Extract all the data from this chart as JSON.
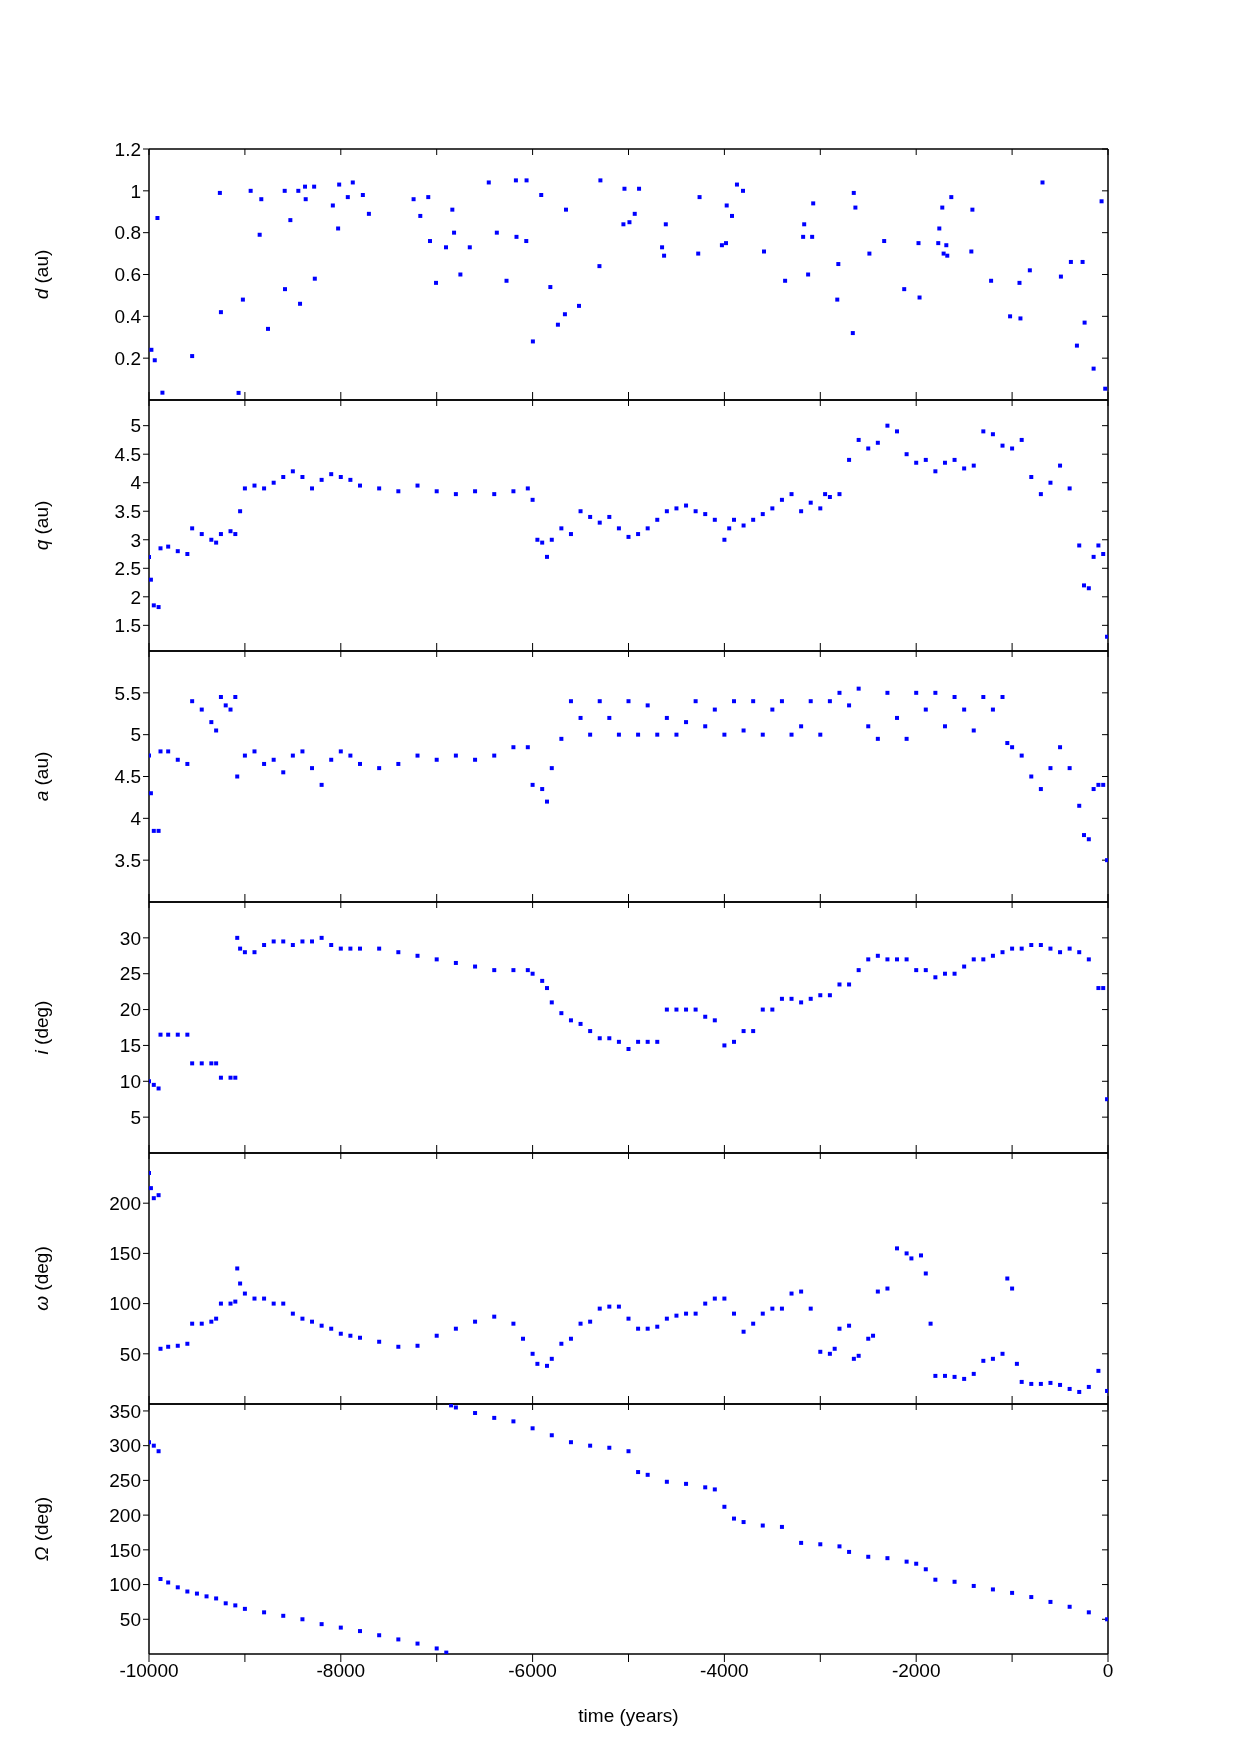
{
  "chart_data": [
    {
      "type": "scatter",
      "ylabel": "d (au)",
      "color": "#0000ff",
      "marker": "square",
      "xlim": [
        -10000,
        0
      ],
      "ylim": [
        0,
        1.2
      ],
      "yticks": [
        0.2,
        0.4,
        0.6,
        0.8,
        1,
        1.2
      ],
      "tick_labels": "y",
      "xticks": [
        -10000,
        {
          "value": -9000,
          "label": null
        },
        -8000,
        {
          "value": -7000,
          "label": null
        },
        -6000,
        {
          "value": -5000,
          "label": null
        },
        -4000,
        {
          "value": -3000,
          "label": null
        },
        -2000,
        {
          "value": -1000,
          "label": null
        },
        0
      ],
      "x": [
        -9975,
        -9940,
        -9912,
        -9860,
        -9550,
        -9261,
        -9250,
        -9066,
        -9021,
        -8940,
        -8846,
        -8829,
        -8759,
        -8585,
        -8582,
        -8526,
        -8443,
        -8425,
        -8373,
        -8366,
        -8278,
        -8271,
        -8083,
        -8028,
        -8017,
        -7927,
        -7875,
        -7770,
        -7707,
        -7241,
        -7171,
        -7088,
        -7070,
        -7007,
        -6903,
        -6837,
        -6819,
        -6753,
        -6655,
        -6457,
        -6373,
        -6272,
        -6174,
        -6168,
        -6066,
        -6063,
        -5997,
        -5910,
        -5815,
        -5736,
        -5663,
        -5652,
        -5516,
        -5303,
        -5293,
        -5053,
        -5042,
        -4990,
        -4935,
        -4890,
        -4650,
        -4629,
        -4611,
        -4273,
        -4259,
        -4026,
        -3983,
        -3976,
        -3921,
        -3869,
        -3806,
        -3587,
        -3367,
        -3179,
        -3168,
        -3127,
        -3085,
        -3074,
        -2823,
        -2812,
        -2661,
        -2651,
        -2634,
        -2488,
        -2334,
        -2125,
        -1976,
        -1965,
        -1770,
        -1759,
        -1728,
        -1714,
        -1686,
        -1676,
        -1634,
        -1425,
        -1414,
        -1219,
        -1021,
        -923,
        -913,
        -815,
        -683,
        -491,
        -387,
        -324,
        -265,
        -244,
        -150,
        -67,
        -29
      ],
      "values": [
        0.24,
        0.19,
        0.87,
        0.035,
        0.21,
        0.99,
        0.42,
        0.034,
        0.48,
        1.0,
        0.79,
        0.96,
        0.34,
        1.0,
        0.53,
        0.86,
        1.0,
        0.46,
        1.02,
        0.96,
        1.02,
        0.58,
        0.93,
        0.82,
        1.03,
        0.97,
        1.04,
        0.98,
        0.89,
        0.96,
        0.88,
        0.97,
        0.76,
        0.56,
        0.73,
        0.91,
        0.8,
        0.6,
        0.73,
        1.04,
        0.8,
        0.57,
        1.05,
        0.78,
        0.76,
        1.05,
        0.28,
        0.98,
        0.54,
        0.36,
        0.41,
        0.91,
        0.45,
        0.64,
        1.05,
        0.84,
        1.01,
        0.85,
        0.89,
        1.01,
        0.73,
        0.69,
        0.84,
        0.7,
        0.97,
        0.74,
        0.75,
        0.93,
        0.88,
        1.03,
        1.0,
        0.71,
        0.57,
        0.78,
        0.84,
        0.6,
        0.78,
        0.94,
        0.48,
        0.65,
        0.32,
        0.99,
        0.92,
        0.7,
        0.76,
        0.53,
        0.75,
        0.49,
        0.75,
        0.82,
        0.92,
        0.7,
        0.74,
        0.69,
        0.97,
        0.71,
        0.91,
        0.57,
        0.4,
        0.56,
        0.39,
        0.62,
        1.04,
        0.59,
        0.66,
        0.26,
        0.66,
        0.37,
        0.15,
        0.95,
        0.054
      ]
    },
    {
      "type": "scatter",
      "ylabel": "q (au)",
      "color": "#0000ff",
      "marker": "square",
      "xlim": [
        -10000,
        0
      ],
      "ylim": [
        1.05,
        5.45
      ],
      "yticks": [
        1.5,
        2,
        2.5,
        3,
        3.5,
        4,
        4.5,
        5
      ],
      "tick_labels": "y",
      "xticks": [
        -10000,
        {
          "value": -9000,
          "label": null
        },
        -8000,
        {
          "value": -7000,
          "label": null
        },
        -6000,
        {
          "value": -5000,
          "label": null
        },
        -4000,
        {
          "value": -3000,
          "label": null
        },
        -2000,
        {
          "value": -1000,
          "label": null
        },
        0
      ],
      "x": [
        -10000,
        -9980,
        -9950,
        -9900,
        -9880,
        -9800,
        -9700,
        -9600,
        -9550,
        -9450,
        -9350,
        -9300,
        -9250,
        -9150,
        -9100,
        -9050,
        -9000,
        -8900,
        -8800,
        -8700,
        -8600,
        -8500,
        -8400,
        -8300,
        -8200,
        -8100,
        -8000,
        -7900,
        -7800,
        -7600,
        -7400,
        -7200,
        -7000,
        -6800,
        -6600,
        -6400,
        -6200,
        -6050,
        -6000,
        -5950,
        -5900,
        -5850,
        -5800,
        -5700,
        -5600,
        -5500,
        -5400,
        -5300,
        -5200,
        -5100,
        -5000,
        -4900,
        -4800,
        -4700,
        -4600,
        -4500,
        -4400,
        -4300,
        -4200,
        -4100,
        -4000,
        -3950,
        -3900,
        -3800,
        -3700,
        -3600,
        -3500,
        -3400,
        -3300,
        -3200,
        -3100,
        -3000,
        -2950,
        -2900,
        -2800,
        -2700,
        -2600,
        -2500,
        -2400,
        -2300,
        -2200,
        -2100,
        -2000,
        -1900,
        -1800,
        -1700,
        -1600,
        -1500,
        -1400,
        -1300,
        -1200,
        -1100,
        -1000,
        -900,
        -800,
        -700,
        -600,
        -500,
        -400,
        -300,
        -250,
        -200,
        -150,
        -100,
        -50,
        -10
      ],
      "values": [
        2.7,
        2.3,
        1.85,
        1.82,
        2.85,
        2.88,
        2.8,
        2.75,
        3.2,
        3.1,
        3.0,
        2.95,
        3.1,
        3.15,
        3.1,
        3.5,
        3.9,
        3.95,
        3.9,
        4.0,
        4.1,
        4.2,
        4.1,
        3.9,
        4.05,
        4.15,
        4.1,
        4.05,
        3.95,
        3.9,
        3.85,
        3.95,
        3.85,
        3.8,
        3.85,
        3.8,
        3.85,
        3.9,
        3.7,
        3.0,
        2.95,
        2.7,
        3.0,
        3.2,
        3.1,
        3.5,
        3.4,
        3.3,
        3.4,
        3.2,
        3.05,
        3.1,
        3.2,
        3.35,
        3.5,
        3.55,
        3.6,
        3.5,
        3.45,
        3.35,
        3.0,
        3.2,
        3.35,
        3.25,
        3.35,
        3.45,
        3.55,
        3.7,
        3.8,
        3.5,
        3.65,
        3.55,
        3.8,
        3.75,
        3.8,
        4.4,
        4.75,
        4.6,
        4.7,
        5.0,
        4.9,
        4.5,
        4.35,
        4.4,
        4.2,
        4.35,
        4.4,
        4.25,
        4.3,
        4.9,
        4.85,
        4.65,
        4.6,
        4.75,
        4.1,
        3.8,
        4.0,
        4.3,
        3.9,
        2.9,
        2.2,
        2.15,
        2.7,
        2.9,
        2.75,
        1.3
      ]
    },
    {
      "type": "scatter",
      "ylabel": "a (au)",
      "color": "#0000ff",
      "marker": "square",
      "xlim": [
        -10000,
        0
      ],
      "ylim": [
        3,
        6
      ],
      "yticks": [
        3.5,
        4,
        4.5,
        5,
        5.5
      ],
      "tick_labels": "y",
      "xticks": [
        -10000,
        {
          "value": -9000,
          "label": null
        },
        -8000,
        {
          "value": -7000,
          "label": null
        },
        -6000,
        {
          "value": -5000,
          "label": null
        },
        -4000,
        {
          "value": -3000,
          "label": null
        },
        -2000,
        {
          "value": -1000,
          "label": null
        },
        0
      ],
      "x": [
        -10000,
        -9980,
        -9950,
        -9900,
        -9880,
        -9800,
        -9700,
        -9600,
        -9550,
        -9450,
        -9350,
        -9300,
        -9250,
        -9200,
        -9150,
        -9100,
        -9080,
        -9000,
        -8900,
        -8800,
        -8700,
        -8600,
        -8500,
        -8400,
        -8300,
        -8200,
        -8100,
        -8000,
        -7900,
        -7800,
        -7600,
        -7400,
        -7200,
        -7000,
        -6800,
        -6600,
        -6400,
        -6200,
        -6050,
        -6000,
        -5900,
        -5850,
        -5800,
        -5700,
        -5600,
        -5500,
        -5400,
        -5300,
        -5200,
        -5100,
        -5000,
        -4900,
        -4800,
        -4700,
        -4600,
        -4500,
        -4400,
        -4300,
        -4200,
        -4100,
        -4000,
        -3900,
        -3800,
        -3700,
        -3600,
        -3500,
        -3400,
        -3300,
        -3200,
        -3100,
        -3000,
        -2900,
        -2800,
        -2700,
        -2600,
        -2500,
        -2400,
        -2300,
        -2200,
        -2100,
        -2000,
        -1900,
        -1800,
        -1700,
        -1600,
        -1500,
        -1400,
        -1300,
        -1200,
        -1100,
        -1050,
        -1000,
        -900,
        -800,
        -700,
        -600,
        -500,
        -400,
        -300,
        -250,
        -200,
        -150,
        -100,
        -50,
        -10
      ],
      "values": [
        4.75,
        4.3,
        3.85,
        3.85,
        4.8,
        4.8,
        4.7,
        4.65,
        5.4,
        5.3,
        5.15,
        5.05,
        5.45,
        5.35,
        5.3,
        5.45,
        4.5,
        4.75,
        4.8,
        4.65,
        4.7,
        4.55,
        4.75,
        4.8,
        4.6,
        4.4,
        4.7,
        4.8,
        4.75,
        4.65,
        4.6,
        4.65,
        4.75,
        4.7,
        4.75,
        4.7,
        4.75,
        4.85,
        4.85,
        4.4,
        4.35,
        4.2,
        4.6,
        4.95,
        5.4,
        5.2,
        5.0,
        5.4,
        5.2,
        5.0,
        5.4,
        5.0,
        5.35,
        5.0,
        5.2,
        5.0,
        5.15,
        5.4,
        5.1,
        5.3,
        5.0,
        5.4,
        5.05,
        5.4,
        5.0,
        5.3,
        5.4,
        5.0,
        5.1,
        5.4,
        5.0,
        5.4,
        5.5,
        5.35,
        5.55,
        5.1,
        4.95,
        5.5,
        5.2,
        4.95,
        5.5,
        5.3,
        5.5,
        5.1,
        5.45,
        5.3,
        5.05,
        5.45,
        5.3,
        5.45,
        4.9,
        4.85,
        4.75,
        4.5,
        4.35,
        4.6,
        4.85,
        4.6,
        4.15,
        3.8,
        3.75,
        4.35,
        4.4,
        4.4,
        3.5
      ]
    },
    {
      "type": "scatter",
      "ylabel": "i (deg)",
      "color": "#0000ff",
      "marker": "square",
      "xlim": [
        -10000,
        0
      ],
      "ylim": [
        0,
        35
      ],
      "yticks": [
        5,
        10,
        15,
        20,
        25,
        30
      ],
      "tick_labels": "y",
      "xticks": [
        -10000,
        {
          "value": -9000,
          "label": null
        },
        -8000,
        {
          "value": -7000,
          "label": null
        },
        -6000,
        {
          "value": -5000,
          "label": null
        },
        -4000,
        {
          "value": -3000,
          "label": null
        },
        -2000,
        {
          "value": -1000,
          "label": null
        },
        0
      ],
      "x": [
        -10000,
        -9950,
        -9900,
        -9880,
        -9800,
        -9700,
        -9600,
        -9550,
        -9450,
        -9350,
        -9300,
        -9250,
        -9150,
        -9100,
        -9080,
        -9050,
        -9000,
        -8900,
        -8800,
        -8700,
        -8600,
        -8500,
        -8400,
        -8300,
        -8200,
        -8100,
        -8000,
        -7900,
        -7800,
        -7600,
        -7400,
        -7200,
        -7000,
        -6800,
        -6600,
        -6400,
        -6200,
        -6050,
        -6000,
        -5900,
        -5850,
        -5800,
        -5700,
        -5600,
        -5500,
        -5400,
        -5300,
        -5200,
        -5100,
        -5000,
        -4900,
        -4800,
        -4700,
        -4600,
        -4500,
        -4400,
        -4300,
        -4200,
        -4100,
        -4000,
        -3900,
        -3800,
        -3700,
        -3600,
        -3500,
        -3400,
        -3300,
        -3200,
        -3100,
        -3000,
        -2900,
        -2800,
        -2700,
        -2600,
        -2500,
        -2400,
        -2300,
        -2200,
        -2100,
        -2000,
        -1900,
        -1800,
        -1700,
        -1600,
        -1500,
        -1400,
        -1300,
        -1200,
        -1100,
        -1000,
        -900,
        -800,
        -700,
        -600,
        -500,
        -400,
        -300,
        -200,
        -100,
        -50,
        -10
      ],
      "values": [
        10,
        9.5,
        9,
        16.5,
        16.5,
        16.5,
        16.5,
        12.5,
        12.5,
        12.5,
        12.5,
        10.5,
        10.5,
        10.5,
        30,
        28.5,
        28,
        28,
        29,
        29.5,
        29.5,
        29,
        29.5,
        29.5,
        30,
        29,
        28.5,
        28.5,
        28.5,
        28.5,
        28,
        27.5,
        27,
        26.5,
        26,
        25.5,
        25.5,
        25.5,
        25,
        24,
        23,
        21,
        19.5,
        18.5,
        18,
        17,
        16,
        16,
        15.5,
        14.5,
        15.5,
        15.5,
        15.5,
        20,
        20,
        20,
        20,
        19,
        18.5,
        15,
        15.5,
        17,
        17,
        20,
        20,
        21.5,
        21.5,
        21,
        21.5,
        22,
        22,
        23.5,
        23.5,
        25.5,
        27,
        27.5,
        27,
        27,
        27,
        25.5,
        25.5,
        24.5,
        25,
        25,
        26,
        27,
        27,
        27.5,
        28,
        28.5,
        28.5,
        29,
        29,
        28.5,
        28,
        28.5,
        28,
        27,
        23,
        23,
        7.5
      ]
    },
    {
      "type": "scatter",
      "ylabel": "ω (deg)",
      "color": "#0000ff",
      "marker": "square",
      "xlim": [
        -10000,
        0
      ],
      "ylim": [
        0,
        250
      ],
      "yticks": [
        50,
        100,
        150,
        200
      ],
      "tick_labels": "y",
      "xticks": [
        -10000,
        {
          "value": -9000,
          "label": null
        },
        -8000,
        {
          "value": -7000,
          "label": null
        },
        -6000,
        {
          "value": -5000,
          "label": null
        },
        -4000,
        {
          "value": -3000,
          "label": null
        },
        -2000,
        {
          "value": -1000,
          "label": null
        },
        0
      ],
      "x": [
        -10000,
        -9980,
        -9950,
        -9900,
        -9880,
        -9800,
        -9700,
        -9600,
        -9550,
        -9450,
        -9350,
        -9300,
        -9250,
        -9150,
        -9100,
        -9080,
        -9050,
        -9000,
        -8900,
        -8800,
        -8700,
        -8600,
        -8500,
        -8400,
        -8300,
        -8200,
        -8100,
        -8000,
        -7900,
        -7800,
        -7600,
        -7400,
        -7200,
        -7000,
        -6800,
        -6600,
        -6400,
        -6200,
        -6100,
        -6000,
        -5950,
        -5850,
        -5800,
        -5700,
        -5600,
        -5500,
        -5400,
        -5300,
        -5200,
        -5100,
        -5000,
        -4900,
        -4800,
        -4700,
        -4600,
        -4500,
        -4400,
        -4300,
        -4200,
        -4100,
        -4000,
        -3900,
        -3800,
        -3700,
        -3600,
        -3500,
        -3400,
        -3300,
        -3200,
        -3100,
        -3000,
        -2900,
        -2850,
        -2800,
        -2700,
        -2650,
        -2600,
        -2500,
        -2450,
        -2400,
        -2300,
        -2200,
        -2100,
        -2050,
        -1950,
        -1900,
        -1850,
        -1800,
        -1700,
        -1600,
        -1500,
        -1400,
        -1300,
        -1200,
        -1100,
        -1050,
        -1000,
        -950,
        -900,
        -800,
        -700,
        -600,
        -500,
        -400,
        -300,
        -200,
        -100,
        -10
      ],
      "values": [
        230,
        215,
        205,
        208,
        55,
        57,
        58,
        60,
        80,
        80,
        82,
        85,
        100,
        100,
        102,
        135,
        120,
        110,
        105,
        105,
        100,
        100,
        90,
        85,
        82,
        78,
        75,
        70,
        68,
        66,
        62,
        57,
        58,
        68,
        75,
        82,
        87,
        80,
        65,
        50,
        40,
        38,
        45,
        60,
        65,
        80,
        82,
        95,
        97,
        97,
        85,
        75,
        75,
        77,
        85,
        88,
        90,
        90,
        100,
        105,
        105,
        90,
        72,
        80,
        90,
        95,
        95,
        110,
        112,
        95,
        52,
        50,
        55,
        75,
        78,
        45,
        48,
        65,
        68,
        112,
        115,
        155,
        150,
        145,
        148,
        130,
        80,
        28,
        28,
        27,
        25,
        30,
        43,
        45,
        50,
        125,
        115,
        40,
        22,
        20,
        20,
        21,
        19,
        15,
        12,
        17,
        33,
        13
      ]
    },
    {
      "type": "scatter",
      "ylabel": "Ω (deg)",
      "xlabel": "time (years)",
      "color": "#0000ff",
      "marker": "square",
      "xlim": [
        -10000,
        0
      ],
      "ylim": [
        0,
        360
      ],
      "yticks": [
        50,
        100,
        150,
        200,
        250,
        300,
        350
      ],
      "xticks": [
        -10000,
        {
          "value": -9000,
          "label": null
        },
        -8000,
        {
          "value": -7000,
          "label": null
        },
        -6000,
        {
          "value": -5000,
          "label": null
        },
        -4000,
        {
          "value": -3000,
          "label": null
        },
        -2000,
        {
          "value": -1000,
          "label": null
        },
        0
      ],
      "x": [
        -10000,
        -9950,
        -9900,
        -9880,
        -9800,
        -9700,
        -9600,
        -9500,
        -9400,
        -9300,
        -9200,
        -9100,
        -9000,
        -8800,
        -8600,
        -8400,
        -8200,
        -8000,
        -7800,
        -7600,
        -7400,
        -7200,
        -7000,
        -6900,
        -6850,
        -6800,
        -6600,
        -6400,
        -6200,
        -6000,
        -5800,
        -5600,
        -5400,
        -5200,
        -5000,
        -4900,
        -4800,
        -4600,
        -4400,
        -4200,
        -4100,
        -4000,
        -3900,
        -3800,
        -3600,
        -3400,
        -3200,
        -3000,
        -2800,
        -2700,
        -2500,
        -2300,
        -2100,
        -2000,
        -1900,
        -1800,
        -1600,
        -1400,
        -1200,
        -1000,
        -800,
        -600,
        -400,
        -200,
        -10
      ],
      "values": [
        305,
        300,
        292,
        108,
        103,
        96,
        90,
        87,
        83,
        80,
        73,
        70,
        65,
        60,
        55,
        50,
        43,
        38,
        33,
        27,
        21,
        15,
        8,
        2,
        358,
        355,
        347,
        340,
        335,
        325,
        315,
        305,
        300,
        297,
        292,
        262,
        258,
        248,
        245,
        240,
        237,
        212,
        195,
        190,
        185,
        183,
        160,
        158,
        155,
        147,
        140,
        138,
        133,
        130,
        122,
        107,
        104,
        98,
        93,
        88,
        82,
        75,
        68,
        60,
        50
      ]
    }
  ]
}
